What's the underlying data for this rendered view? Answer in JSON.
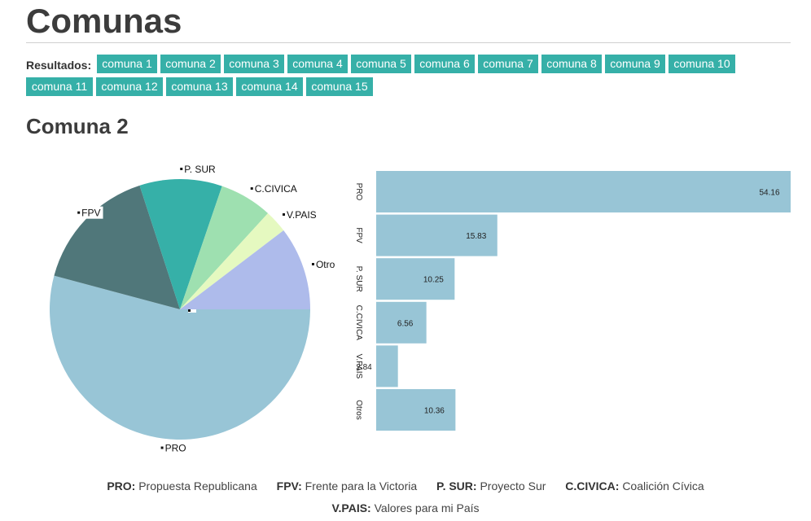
{
  "header": {
    "title": "Comunas"
  },
  "results": {
    "label": "Resultados:",
    "links": [
      "comuna 1",
      "comuna 2",
      "comuna 3",
      "comuna 4",
      "comuna 5",
      "comuna 6",
      "comuna 7",
      "comuna 8",
      "comuna 9",
      "comuna 10",
      "comuna 11",
      "comuna 12",
      "comuna 13",
      "comuna 14",
      "comuna 15"
    ]
  },
  "section": {
    "title": "Comuna 2"
  },
  "colors": {
    "accent": "#36b0a8",
    "bar": "#98c5d6",
    "pie": [
      "#98c5d6",
      "#50777a",
      "#36b0a8",
      "#9ee0b0",
      "#e5f9c0",
      "#aebbeb"
    ]
  },
  "chart_data": [
    {
      "type": "pie",
      "categories": [
        "PRO",
        "FPV",
        "P. SUR",
        "C.CIVICA",
        "V.PAIS",
        "Otro"
      ],
      "values": [
        54.16,
        15.83,
        10.25,
        6.56,
        2.84,
        10.36
      ]
    },
    {
      "type": "bar",
      "orientation": "horizontal",
      "categories": [
        "PRO",
        "FPV",
        "P. SUR",
        "C.CIVICA",
        "V.PAIS",
        "Otros"
      ],
      "values": [
        54.16,
        15.83,
        10.25,
        6.56,
        2.84,
        10.36
      ],
      "data_labels": [
        "54.16",
        "15.83",
        "10.25",
        "6.56",
        "2.84",
        "10.36"
      ],
      "xlim": [
        0,
        54.16
      ]
    }
  ],
  "legend": [
    {
      "abbr": "PRO:",
      "name": "Propuesta Republicana"
    },
    {
      "abbr": "FPV:",
      "name": "Frente para la Victoria"
    },
    {
      "abbr": "P. SUR:",
      "name": "Proyecto Sur"
    },
    {
      "abbr": "C.CIVICA:",
      "name": "Coalición Cívica"
    },
    {
      "abbr": "V.PAIS:",
      "name": "Valores para mi País"
    }
  ]
}
